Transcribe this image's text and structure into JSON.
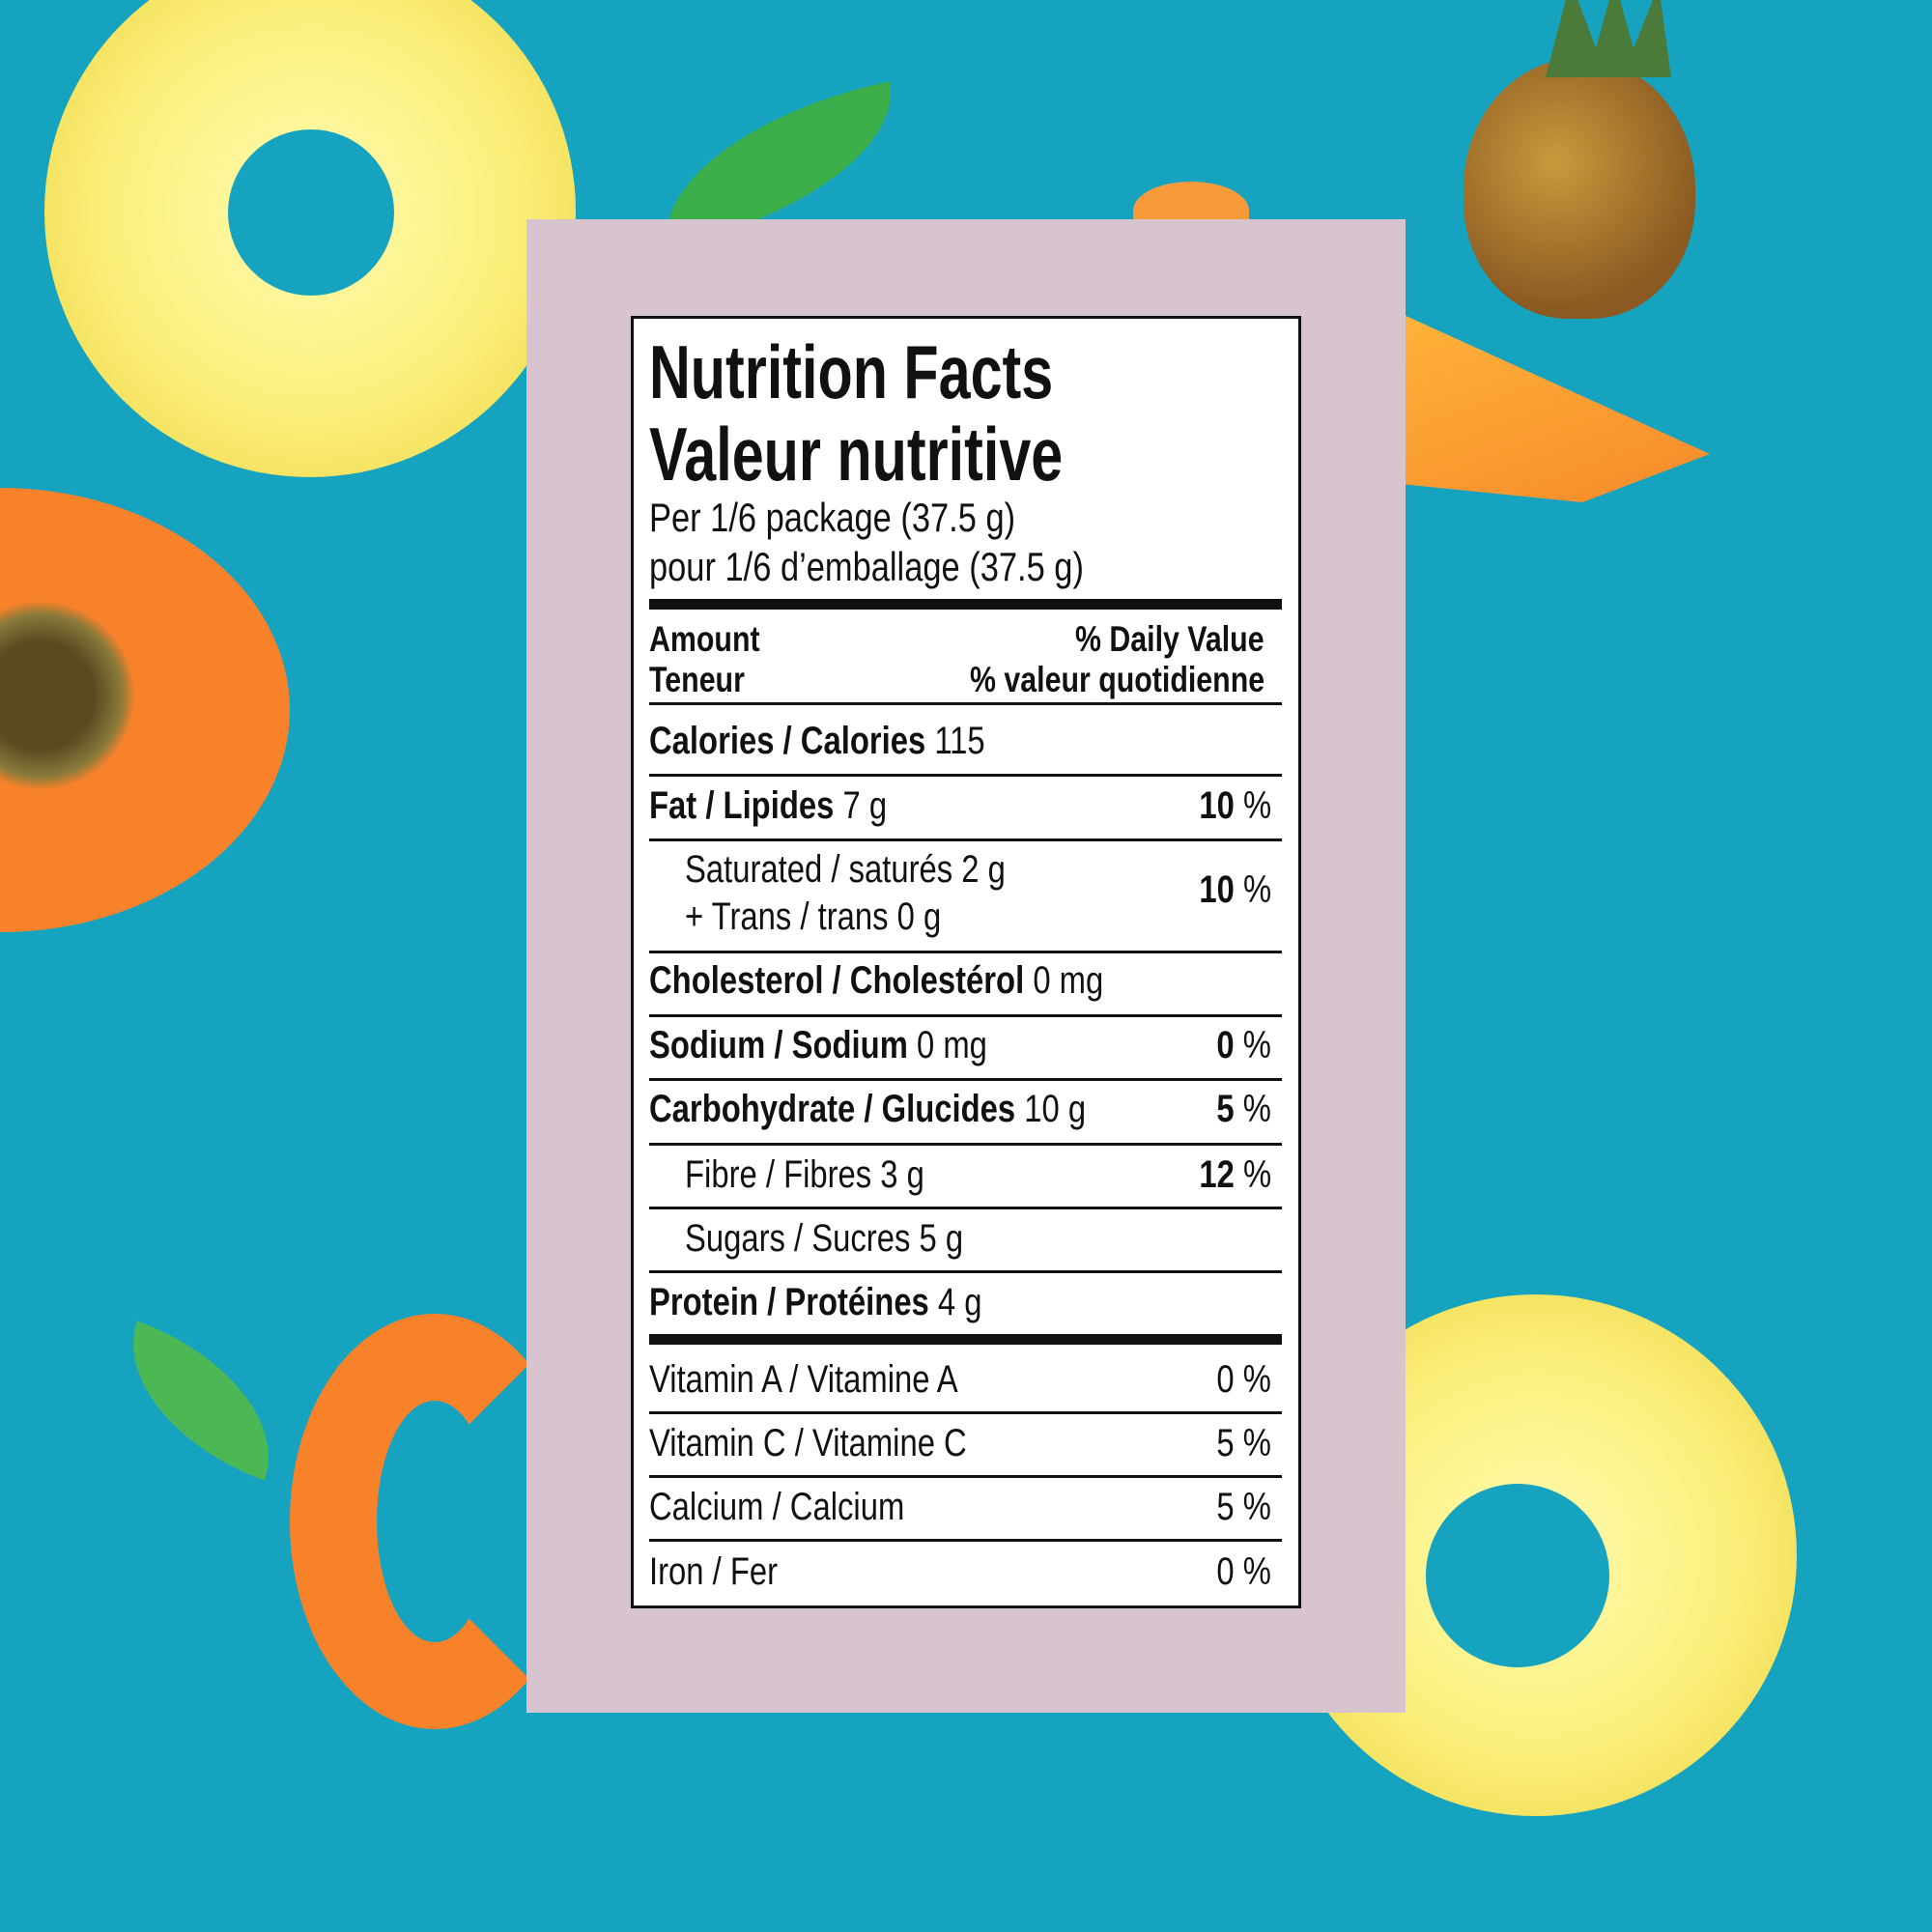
{
  "colors": {
    "background": "#16a3c0",
    "panel": "#d7c4ce",
    "label": "#ffffff",
    "text": "#111111"
  },
  "decorations": [
    "pineapple-ring",
    "pineapple-ring",
    "papaya-slice",
    "papaya-slice",
    "mango-slice",
    "whole-pineapple",
    "leaf",
    "leaf"
  ],
  "label": {
    "title_en": "Nutrition Facts",
    "title_fr": "Valeur nutritive",
    "serving_en": "Per 1/6 package (37.5 g)",
    "serving_fr": "pour 1/6 d’emballage (37.5 g)",
    "header": {
      "amount_en": "Amount",
      "amount_fr": "Teneur",
      "dv_en": "% Daily Value",
      "dv_fr": "% valeur quotidienne"
    },
    "percent": "%",
    "rows": {
      "calories": {
        "label": "Calories / Calories",
        "amount": "115"
      },
      "fat": {
        "label": "Fat / Lipides",
        "amount": "7 g",
        "dv": "10"
      },
      "saturated": {
        "line1": "Saturated / saturés 2 g",
        "line2": "+ Trans / trans 0 g",
        "dv": "10"
      },
      "cholesterol": {
        "label": "Cholesterol / Cholestérol",
        "amount": "0 mg"
      },
      "sodium": {
        "label": "Sodium / Sodium",
        "amount": "0 mg",
        "dv": "0"
      },
      "carbohydrate": {
        "label": "Carbohydrate / Glucides",
        "amount": "10 g",
        "dv": "5"
      },
      "fibre": {
        "label": "Fibre / Fibres 3 g",
        "dv": "12"
      },
      "sugars": {
        "label": "Sugars / Sucres 5 g"
      },
      "protein": {
        "label": "Protein / Protéines",
        "amount": "4 g"
      }
    },
    "vitamins": [
      {
        "label": "Vitamin A / Vitamine A",
        "dv": "0 %"
      },
      {
        "label": "Vitamin C / Vitamine C",
        "dv": "5 %"
      },
      {
        "label": "Calcium / Calcium",
        "dv": "5 %"
      },
      {
        "label": "Iron / Fer",
        "dv": "0 %"
      }
    ]
  }
}
